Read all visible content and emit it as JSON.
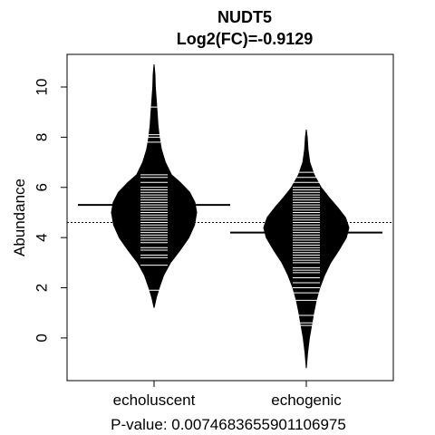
{
  "chart_data": {
    "type": "beanplot",
    "title": "NUDT5",
    "subtitle": "Log2(FC)=-0.9129",
    "xlabel": "P-value: 0.00746836559011069​75",
    "ylabel": "Abundance",
    "ylim": [
      -1.7,
      11.3
    ],
    "yticks": [
      0,
      2,
      4,
      6,
      8,
      10
    ],
    "overall_mean": 4.6,
    "categories": [
      "echoluscent",
      "echogenic"
    ],
    "groups": [
      {
        "name": "echoluscent",
        "mean": 5.3,
        "range": [
          1.2,
          10.9
        ],
        "density": [
          [
            1.2,
            0.0
          ],
          [
            1.6,
            0.05
          ],
          [
            2.0,
            0.12
          ],
          [
            2.5,
            0.22
          ],
          [
            3.0,
            0.38
          ],
          [
            3.5,
            0.6
          ],
          [
            4.0,
            0.8
          ],
          [
            4.5,
            0.93
          ],
          [
            5.0,
            0.98
          ],
          [
            5.4,
            0.94
          ],
          [
            5.8,
            0.82
          ],
          [
            6.2,
            0.6
          ],
          [
            6.5,
            0.4
          ],
          [
            7.0,
            0.26
          ],
          [
            7.5,
            0.17
          ],
          [
            8.0,
            0.12
          ],
          [
            8.5,
            0.09
          ],
          [
            9.0,
            0.07
          ],
          [
            9.5,
            0.05
          ],
          [
            10.0,
            0.03
          ],
          [
            10.5,
            0.02
          ],
          [
            10.9,
            0.0
          ]
        ],
        "points": [
          1.9,
          2.9,
          3.2,
          3.3,
          3.5,
          3.6,
          3.8,
          3.9,
          4.0,
          4.1,
          4.2,
          4.3,
          4.4,
          4.5,
          4.6,
          4.7,
          4.8,
          4.9,
          5.0,
          5.1,
          5.2,
          5.3,
          5.4,
          5.5,
          5.6,
          5.7,
          5.8,
          5.9,
          6.0,
          6.2,
          6.4,
          6.5,
          7.8,
          8.0,
          8.1,
          9.2
        ]
      },
      {
        "name": "echogenic",
        "mean": 4.2,
        "range": [
          -1.2,
          8.3
        ],
        "density": [
          [
            -1.2,
            0.0
          ],
          [
            -0.6,
            0.03
          ],
          [
            0.0,
            0.07
          ],
          [
            0.5,
            0.12
          ],
          [
            1.0,
            0.17
          ],
          [
            1.5,
            0.23
          ],
          [
            2.0,
            0.31
          ],
          [
            2.5,
            0.42
          ],
          [
            3.0,
            0.56
          ],
          [
            3.5,
            0.75
          ],
          [
            4.0,
            0.92
          ],
          [
            4.4,
            0.98
          ],
          [
            4.8,
            0.9
          ],
          [
            5.2,
            0.72
          ],
          [
            5.6,
            0.52
          ],
          [
            6.0,
            0.34
          ],
          [
            6.5,
            0.18
          ],
          [
            7.0,
            0.08
          ],
          [
            7.5,
            0.04
          ],
          [
            8.0,
            0.02
          ],
          [
            8.3,
            0.0
          ]
        ],
        "points": [
          0.5,
          0.6,
          0.9,
          1.5,
          1.8,
          2.0,
          2.2,
          2.4,
          2.6,
          2.7,
          2.8,
          3.0,
          3.1,
          3.2,
          3.3,
          3.4,
          3.5,
          3.6,
          3.7,
          3.8,
          3.9,
          4.0,
          4.1,
          4.2,
          4.3,
          4.4,
          4.5,
          4.6,
          4.7,
          4.8,
          4.9,
          5.0,
          5.1,
          5.2,
          5.3,
          5.4,
          5.5,
          5.6,
          5.7,
          5.8,
          5.9,
          6.0,
          6.2,
          6.4,
          6.6
        ]
      }
    ]
  }
}
